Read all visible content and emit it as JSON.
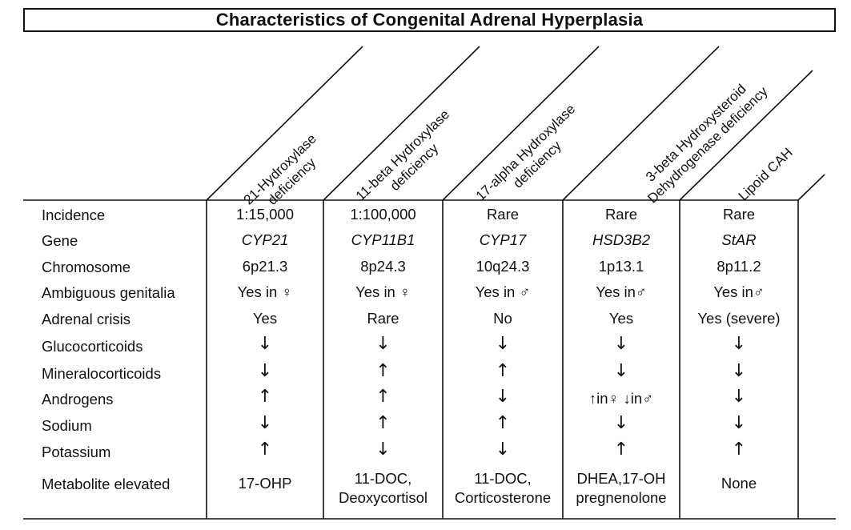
{
  "title": "Characteristics of Congenital Adrenal Hyperplasia",
  "columns": [
    {
      "line1": "21-Hydroxylase",
      "line2": "deficiency"
    },
    {
      "line1": "11-beta Hydroxylase",
      "line2": "deficiency"
    },
    {
      "line1": "17-alpha Hydroxylase",
      "line2": "deficiency"
    },
    {
      "line1": "3-beta Hydroxysteroid",
      "line2": "Dehydrogenase deficiency"
    },
    {
      "line1": "Lipoid CAH",
      "line2": ""
    }
  ],
  "rows": [
    {
      "label": "Incidence",
      "cells": [
        "1:15,000",
        "1:100,000",
        "Rare",
        "Rare",
        "Rare"
      ]
    },
    {
      "label": "Gene",
      "italic": true,
      "cells": [
        "CYP21",
        "CYP11B1",
        "CYP17",
        "HSD3B2",
        "StAR"
      ]
    },
    {
      "label": "Chromosome",
      "cells": [
        "6p21.3",
        "8p24.3",
        "10q24.3",
        "1p13.1",
        "8p11.2"
      ]
    },
    {
      "label": "Ambiguous genitalia",
      "cells": [
        "Yes in ♀",
        "Yes in ♀",
        "Yes in ♂",
        "Yes in♂",
        "Yes in♂"
      ]
    },
    {
      "label": "Adrenal crisis",
      "cells": [
        "Yes",
        "Rare",
        "No",
        "Yes",
        "Yes (severe)"
      ]
    },
    {
      "label": "Glucocorticoids",
      "arrows": true,
      "cells": [
        "↓",
        "↓",
        "↓",
        "↓",
        "↓"
      ]
    },
    {
      "label": "Mineralocorticoids",
      "arrows": true,
      "cells": [
        "↓",
        "↑",
        "↑",
        "↓",
        "↓"
      ]
    },
    {
      "label": "Androgens",
      "arrows": true,
      "cells": [
        "↑",
        "↑",
        "↓",
        "↑in♀ ↓in♂",
        "↓"
      ]
    },
    {
      "label": "Sodium",
      "arrows": true,
      "cells": [
        "↓",
        "↑",
        "↑",
        "↓",
        "↓"
      ]
    },
    {
      "label": "Potassium",
      "arrows": true,
      "cells": [
        "↑",
        "↓",
        "↓",
        "↑",
        "↑"
      ]
    },
    {
      "label": "Metabolite elevated",
      "cells": [
        "17-OHP",
        "11-DOC,\nDeoxycortisol",
        "11-DOC,\nCorticosterone",
        "DHEA,17-OH\npregnenolone",
        "None"
      ]
    }
  ]
}
